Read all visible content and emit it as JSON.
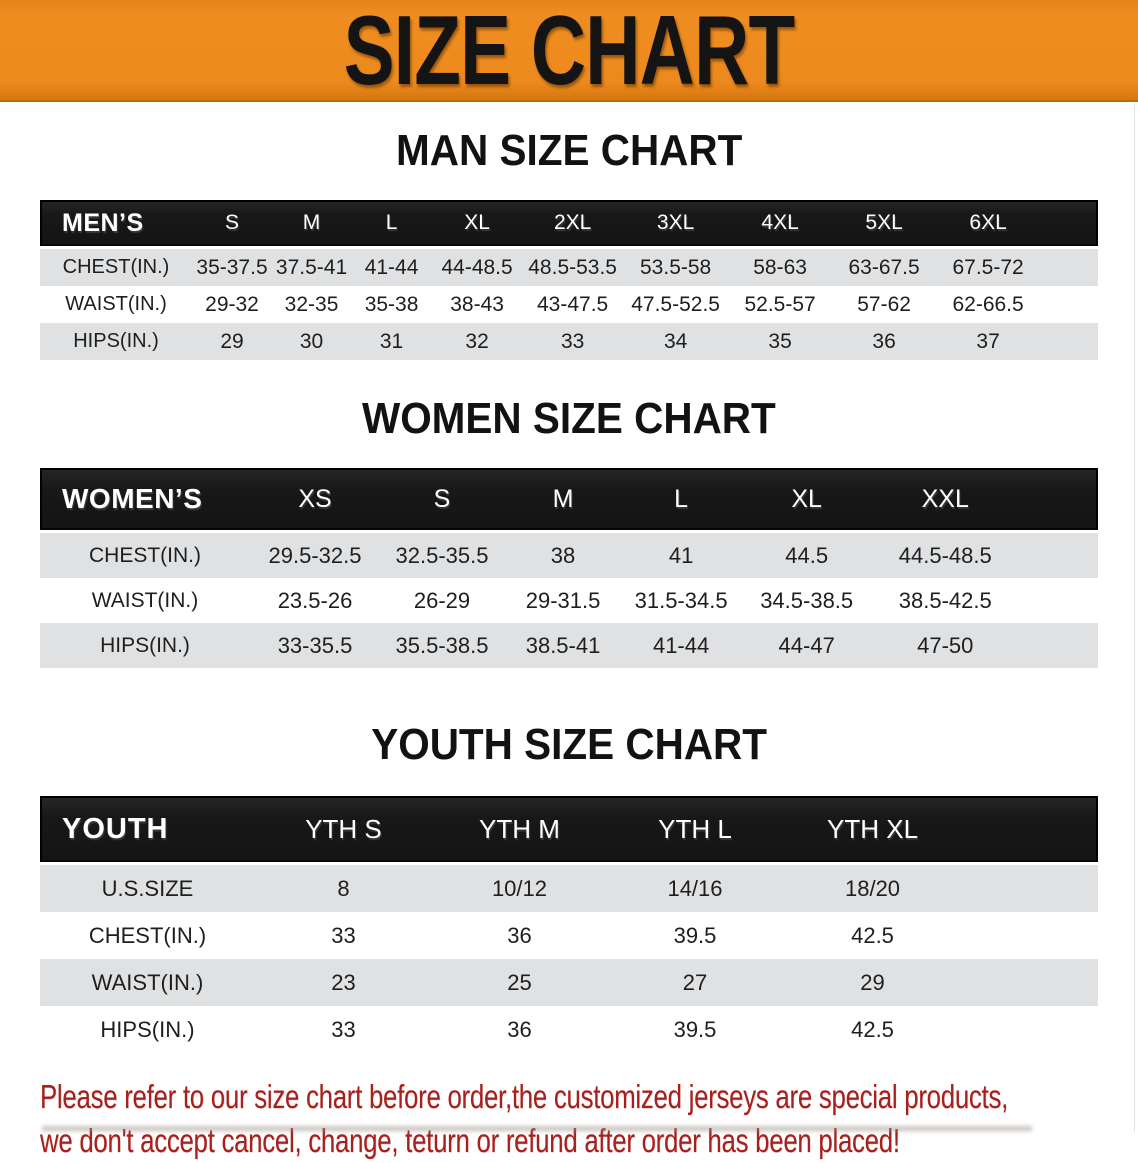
{
  "banner": {
    "title": "SIZE CHART"
  },
  "colors": {
    "banner_orange": "#ED8A1E",
    "header_bar_black": "#1B1B1B",
    "stripe_gray": "#DFE1E3",
    "disclaimer_red": "#A8201D"
  },
  "chart_data": [
    {
      "type": "table",
      "title": "MAN SIZE CHART",
      "header": [
        "MEN’S",
        "S",
        "M",
        "L",
        "XL",
        "2XL",
        "3XL",
        "4XL",
        "5XL",
        "6XL"
      ],
      "rows": [
        [
          "CHEST(IN.)",
          "35-37.5",
          "37.5-41",
          "41-44",
          "44-48.5",
          "48.5-53.5",
          "53.5-58",
          "58-63",
          "63-67.5",
          "67.5-72"
        ],
        [
          "WAIST(IN.)",
          "29-32",
          "32-35",
          "35-38",
          "38-43",
          "43-47.5",
          "47.5-52.5",
          "52.5-57",
          "57-62",
          "62-66.5"
        ],
        [
          "HIPS(IN.)",
          "29",
          "30",
          "31",
          "32",
          "33",
          "34",
          "35",
          "36",
          "37"
        ]
      ]
    },
    {
      "type": "table",
      "title": "WOMEN SIZE CHART",
      "header": [
        "WOMEN’S",
        "XS",
        "S",
        "M",
        "L",
        "XL",
        "XXL"
      ],
      "rows": [
        [
          "CHEST(IN.)",
          "29.5-32.5",
          "32.5-35.5",
          "38",
          "41",
          "44.5",
          "44.5-48.5"
        ],
        [
          "WAIST(IN.)",
          "23.5-26",
          "26-29",
          "29-31.5",
          "31.5-34.5",
          "34.5-38.5",
          "38.5-42.5"
        ],
        [
          "HIPS(IN.)",
          "33-35.5",
          "35.5-38.5",
          "38.5-41",
          "41-44",
          "44-47",
          "47-50"
        ]
      ]
    },
    {
      "type": "table",
      "title": "YOUTH SIZE CHART",
      "header": [
        "YOUTH",
        "YTH S",
        "YTH M",
        "YTH L",
        "YTH XL"
      ],
      "rows": [
        [
          "U.S.SIZE",
          "8",
          "10/12",
          "14/16",
          "18/20"
        ],
        [
          "CHEST(IN.)",
          "33",
          "36",
          "39.5",
          "42.5"
        ],
        [
          "WAIST(IN.)",
          "23",
          "25",
          "27",
          "29"
        ],
        [
          "HIPS(IN.)",
          "33",
          "36",
          "39.5",
          "42.5"
        ]
      ]
    }
  ],
  "disclaimer": {
    "line1": "Please refer to our size chart before order,the customized jerseys are special products,",
    "line2": "we don't accept cancel, change, teturn or refund after order has been placed!"
  }
}
